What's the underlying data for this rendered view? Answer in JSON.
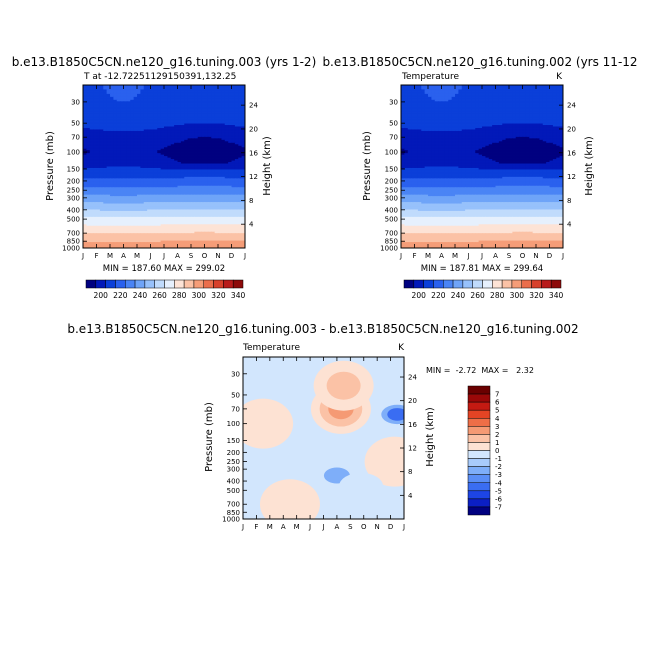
{
  "colors": {
    "abs": [
      "#000180",
      "#0219b9",
      "#0b3fd9",
      "#2a61ee",
      "#4a84f5",
      "#6fa4f8",
      "#97c1fb",
      "#c0dbfc",
      "#e6f0fd",
      "#fde3d6",
      "#fbc2a6",
      "#f59d78",
      "#ea6e4c",
      "#d7412c",
      "#b81b1b",
      "#8d0a0a"
    ],
    "diff": [
      "#010180",
      "#0b1fc4",
      "#1d45e5",
      "#3a6df2",
      "#5a8ef6",
      "#7eaef9",
      "#a8cbfb",
      "#d2e6fd",
      "#fde2d3",
      "#fbc2a6",
      "#f59a74",
      "#ee6e47",
      "#e44424",
      "#c41a12",
      "#9a0808",
      "#6a0000"
    ]
  },
  "chart_data": [
    {
      "type": "heatmap",
      "name": "panel-1",
      "title": "b.e13.B1850C5CN.ne120_g16.tuning.003 (yrs 1-2)",
      "subtitle_left": "T at -12.72251129150391,132.25",
      "subtitle_right": "",
      "xlabel": "",
      "ylabel": "Pressure (mb)",
      "y2label": "Height (km)",
      "x_ticks": [
        "J",
        "F",
        "M",
        "A",
        "M",
        "J",
        "J",
        "A",
        "S",
        "O",
        "N",
        "D",
        "J"
      ],
      "y_ticks": [
        30,
        50,
        70,
        100,
        150,
        200,
        250,
        300,
        400,
        500,
        700,
        850,
        1000
      ],
      "y2_ticks": [
        24,
        20,
        16,
        12,
        8,
        4
      ],
      "ylim": [
        1000,
        20
      ],
      "stats": "MIN = 187.60  MAX = 299.02",
      "colorbar_labels": [
        "200",
        "220",
        "240",
        "260",
        "280",
        "300",
        "320",
        "340"
      ],
      "levels": [
        190,
        200,
        210,
        220,
        230,
        240,
        250,
        260,
        270,
        280,
        290,
        300
      ],
      "layers": [
        {
          "p": 20,
          "v": 208
        },
        {
          "p": 30,
          "v": 207
        },
        {
          "p": 50,
          "v": 203
        },
        {
          "p": 70,
          "v": 193
        },
        {
          "p": 100,
          "v": 189
        },
        {
          "p": 130,
          "v": 192
        },
        {
          "p": 150,
          "v": 200
        },
        {
          "p": 200,
          "v": 213
        },
        {
          "p": 250,
          "v": 224
        },
        {
          "p": 300,
          "v": 234
        },
        {
          "p": 400,
          "v": 250
        },
        {
          "p": 500,
          "v": 263
        },
        {
          "p": 700,
          "v": 280
        },
        {
          "p": 850,
          "v": 290
        },
        {
          "p": 1000,
          "v": 298
        }
      ],
      "seasonal_amplitude_k": 3
    },
    {
      "type": "heatmap",
      "name": "panel-2",
      "title": "b.e13.B1850C5CN.ne120_g16.tuning.002 (yrs 11-12",
      "subtitle_left": "Temperature",
      "subtitle_right": "K",
      "xlabel": "",
      "ylabel": "Pressure (mb)",
      "y2label": "Height (km)",
      "x_ticks": [
        "J",
        "F",
        "M",
        "A",
        "M",
        "J",
        "J",
        "A",
        "S",
        "O",
        "N",
        "D",
        "J"
      ],
      "y_ticks": [
        30,
        50,
        70,
        100,
        150,
        200,
        250,
        300,
        400,
        500,
        700,
        850,
        1000
      ],
      "y2_ticks": [
        24,
        20,
        16,
        12,
        8,
        4
      ],
      "ylim": [
        1000,
        20
      ],
      "stats": "MIN = 187.81  MAX = 299.64",
      "colorbar_labels": [
        "200",
        "220",
        "240",
        "260",
        "280",
        "300",
        "320",
        "340"
      ],
      "levels": [
        190,
        200,
        210,
        220,
        230,
        240,
        250,
        260,
        270,
        280,
        290,
        300
      ],
      "layers": [
        {
          "p": 20,
          "v": 208
        },
        {
          "p": 30,
          "v": 207
        },
        {
          "p": 50,
          "v": 203
        },
        {
          "p": 70,
          "v": 193
        },
        {
          "p": 100,
          "v": 189
        },
        {
          "p": 130,
          "v": 192
        },
        {
          "p": 150,
          "v": 200
        },
        {
          "p": 200,
          "v": 213
        },
        {
          "p": 250,
          "v": 224
        },
        {
          "p": 300,
          "v": 234
        },
        {
          "p": 400,
          "v": 250
        },
        {
          "p": 500,
          "v": 263
        },
        {
          "p": 700,
          "v": 280
        },
        {
          "p": 850,
          "v": 290
        },
        {
          "p": 1000,
          "v": 298
        }
      ],
      "seasonal_amplitude_k": 3
    },
    {
      "type": "heatmap",
      "name": "panel-diff",
      "title": "b.e13.B1850C5CN.ne120_g16.tuning.003 - b.e13.B1850C5CN.ne120_g16.tuning.002",
      "subtitle_left": "Temperature",
      "subtitle_right": "K",
      "xlabel": "",
      "ylabel": "Pressure (mb)",
      "y2label": "Height (km)",
      "x_ticks": [
        "J",
        "F",
        "M",
        "A",
        "M",
        "J",
        "J",
        "A",
        "S",
        "O",
        "N",
        "D",
        "J"
      ],
      "y_ticks": [
        30,
        50,
        70,
        100,
        150,
        200,
        250,
        300,
        400,
        500,
        700,
        850,
        1000
      ],
      "y2_ticks": [
        24,
        20,
        16,
        12,
        8,
        4
      ],
      "ylim": [
        1000,
        20
      ],
      "stats": "MIN =  -2.72  MAX =   2.32",
      "colorbar_labels": [
        "7",
        "6",
        "5",
        "4",
        "3",
        "2",
        "1",
        "0",
        "-1",
        "-2",
        "-3",
        "-4",
        "-5",
        "-6",
        "-7"
      ],
      "features": [
        {
          "kind": "warm",
          "month": 7.3,
          "p": 70,
          "value": 2.2
        },
        {
          "kind": "warm",
          "month": 1.5,
          "p": 100,
          "value": 0.6
        },
        {
          "kind": "warm",
          "month": 7.5,
          "p": 40,
          "value": 1.1
        },
        {
          "kind": "warm",
          "month": 11.3,
          "p": 250,
          "value": 0.7
        },
        {
          "kind": "warm",
          "month": 3.5,
          "p": 700,
          "value": 0.5
        },
        {
          "kind": "cold",
          "month": 11.5,
          "p": 80,
          "value": -2.7
        },
        {
          "kind": "cold",
          "month": 7.0,
          "p": 350,
          "value": -1.6
        },
        {
          "kind": "cold",
          "month": 8.8,
          "p": 450,
          "value": -0.9
        }
      ]
    }
  ]
}
